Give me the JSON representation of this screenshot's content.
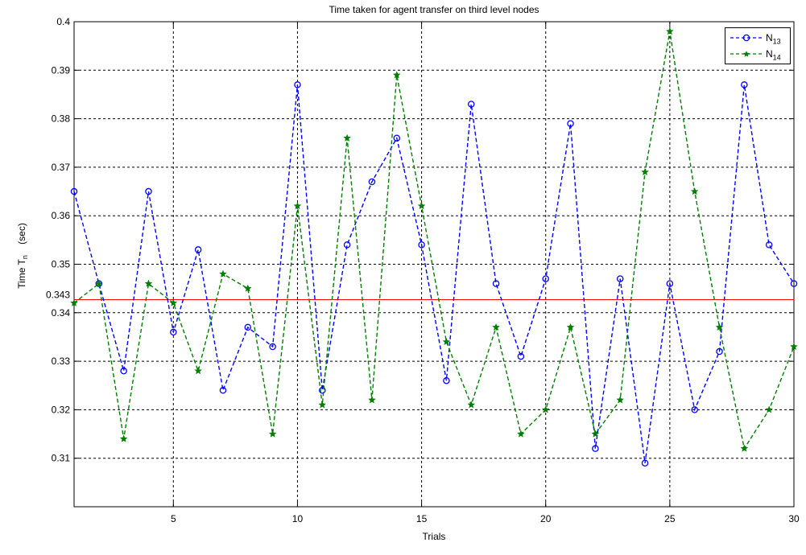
{
  "chart_data": {
    "type": "line",
    "title": "Time taken for agent transfer on third level nodes",
    "xlabel": "Trials",
    "ylabel": {
      "main": "Time T",
      "sub": "n",
      "unit": "(sec)"
    },
    "xlim": [
      1,
      30
    ],
    "ylim": [
      0.3,
      0.4
    ],
    "xticks": [
      5,
      10,
      15,
      20,
      25,
      30
    ],
    "yticks": [
      0.31,
      0.32,
      0.33,
      0.34,
      0.35,
      0.36,
      0.37,
      0.38,
      0.39,
      0.4
    ],
    "xtick_labels": [
      "5",
      "10",
      "15",
      "20",
      "25",
      "30"
    ],
    "ytick_labels": [
      "0.31",
      "0.32",
      "0.33",
      "0.34",
      "0.35",
      "0.36",
      "0.37",
      "0.38",
      "0.39",
      "0.4"
    ],
    "grid": true,
    "legend_position": "top-right",
    "x": [
      1,
      2,
      3,
      4,
      5,
      6,
      7,
      8,
      9,
      10,
      11,
      12,
      13,
      14,
      15,
      16,
      17,
      18,
      19,
      20,
      21,
      22,
      23,
      24,
      25,
      26,
      27,
      28,
      29,
      30
    ],
    "series": [
      {
        "legend_main": "N",
        "legend_sub": "13",
        "color": "#0000ff",
        "marker": "circle",
        "line_style": "dashed",
        "values": [
          0.365,
          0.346,
          0.328,
          0.365,
          0.336,
          0.353,
          0.324,
          0.337,
          0.333,
          0.387,
          0.324,
          0.354,
          0.367,
          0.376,
          0.354,
          0.326,
          0.383,
          0.346,
          0.331,
          0.347,
          0.379,
          0.312,
          0.347,
          0.309,
          0.346,
          0.32,
          0.332,
          0.387,
          0.354,
          0.346
        ]
      },
      {
        "legend_main": "N",
        "legend_sub": "14",
        "color": "#007f00",
        "marker": "star",
        "line_style": "dashed",
        "values": [
          0.342,
          0.346,
          0.314,
          0.346,
          0.342,
          0.328,
          0.348,
          0.345,
          0.315,
          0.362,
          0.321,
          0.376,
          0.322,
          0.389,
          0.362,
          0.334,
          0.321,
          0.337,
          0.315,
          0.32,
          0.337,
          0.315,
          0.322,
          0.369,
          0.398,
          0.365,
          0.337,
          0.312,
          0.32,
          0.333
        ]
      }
    ],
    "reference_line": {
      "value": 0.3427,
      "label": "0.343",
      "color": "#ff0000"
    }
  }
}
